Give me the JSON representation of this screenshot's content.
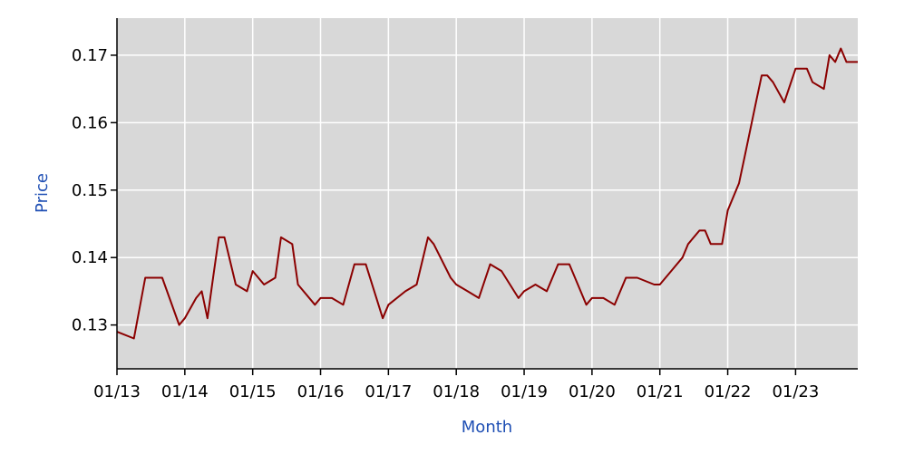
{
  "chart_data": {
    "type": "line",
    "xlabel": "Month",
    "ylabel": "Price",
    "x_tick_labels": [
      "01/13",
      "01/14",
      "01/15",
      "01/16",
      "01/17",
      "01/18",
      "01/19",
      "01/20",
      "01/21",
      "01/22",
      "01/23"
    ],
    "y_tick_labels": [
      "0.13",
      "0.14",
      "0.15",
      "0.16",
      "0.17"
    ],
    "y_ticks": [
      0.13,
      0.14,
      0.15,
      0.16,
      0.17
    ],
    "xlim": [
      "2013-01",
      "2023-12"
    ],
    "ylim": [
      0.1235,
      0.1755
    ],
    "grid": true,
    "colors": {
      "line": "#8b0000",
      "plot_bg": "#d8d8d8",
      "grid": "#ffffff",
      "axis": "#000000",
      "axis_title": "#1f4fb4"
    },
    "series": [
      {
        "x": [
          "2013-01",
          "2013-04",
          "2013-06",
          "2013-09",
          "2013-12",
          "2014-01",
          "2014-03",
          "2014-04",
          "2014-05",
          "2014-06",
          "2014-07",
          "2014-08",
          "2014-10",
          "2014-12",
          "2015-01",
          "2015-03",
          "2015-05",
          "2015-06",
          "2015-08",
          "2015-09",
          "2015-12",
          "2016-01",
          "2016-03",
          "2016-05",
          "2016-07",
          "2016-08",
          "2016-09",
          "2016-12",
          "2017-01",
          "2017-04",
          "2017-06",
          "2017-08",
          "2017-09",
          "2017-12",
          "2018-01",
          "2018-03",
          "2018-05",
          "2018-07",
          "2018-09",
          "2018-12",
          "2019-01",
          "2019-03",
          "2019-05",
          "2019-07",
          "2019-09",
          "2019-12",
          "2020-01",
          "2020-03",
          "2020-05",
          "2020-07",
          "2020-09",
          "2020-12",
          "2021-01",
          "2021-03",
          "2021-05",
          "2021-06",
          "2021-08",
          "2021-09",
          "2021-10",
          "2021-12",
          "2022-01",
          "2022-03",
          "2022-04",
          "2022-06",
          "2022-07",
          "2022-08",
          "2022-09",
          "2022-11",
          "2023-01",
          "2023-03",
          "2023-04",
          "2023-06",
          "2023-07",
          "2023-08",
          "2023-09",
          "2023-10",
          "2023-12"
        ],
        "y": [
          0.129,
          0.128,
          0.137,
          0.137,
          0.13,
          0.131,
          0.134,
          0.135,
          0.131,
          0.137,
          0.143,
          0.143,
          0.136,
          0.135,
          0.138,
          0.136,
          0.137,
          0.143,
          0.142,
          0.136,
          0.133,
          0.134,
          0.134,
          0.133,
          0.139,
          0.139,
          0.139,
          0.131,
          0.133,
          0.135,
          0.136,
          0.143,
          0.142,
          0.137,
          0.136,
          0.135,
          0.134,
          0.139,
          0.138,
          0.134,
          0.135,
          0.136,
          0.135,
          0.139,
          0.139,
          0.133,
          0.134,
          0.134,
          0.133,
          0.137,
          0.137,
          0.136,
          0.136,
          0.138,
          0.14,
          0.142,
          0.144,
          0.144,
          0.142,
          0.142,
          0.147,
          0.151,
          0.155,
          0.163,
          0.167,
          0.167,
          0.166,
          0.163,
          0.168,
          0.168,
          0.166,
          0.165,
          0.17,
          0.169,
          0.171,
          0.169,
          0.169
        ]
      }
    ]
  }
}
